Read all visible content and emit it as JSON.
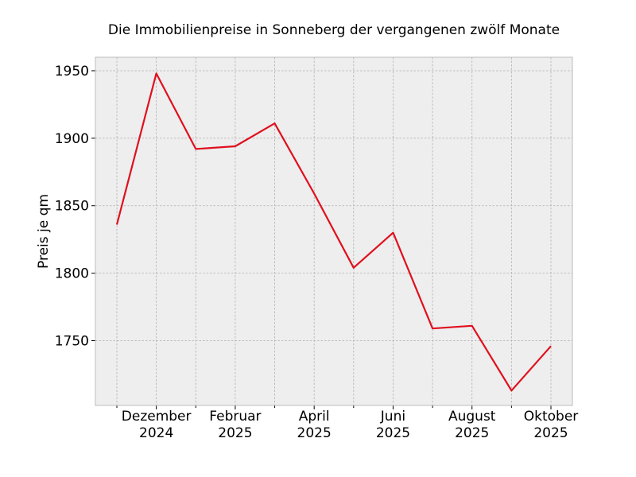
{
  "chart_data": {
    "type": "line",
    "title": "Die Immobilienpreise in Sonneberg der vergangenen zwölf Monate",
    "xlabel": "",
    "ylabel": "Preis je qm",
    "x": [
      "2024-11",
      "2024-12",
      "2025-01",
      "2025-02",
      "2025-03",
      "2025-04",
      "2025-05",
      "2025-06",
      "2025-07",
      "2025-08",
      "2025-09",
      "2025-10"
    ],
    "series": [
      {
        "values": [
          1836,
          1948,
          1892,
          1894,
          1911,
          1859,
          1804,
          1830,
          1759,
          1761,
          1713,
          1746
        ],
        "color": "#e0101e"
      }
    ],
    "x_ticks": [
      {
        "x": "2024-12",
        "line1": "Dezember",
        "line2": "2024"
      },
      {
        "x": "2025-02",
        "line1": "Februar",
        "line2": "2025"
      },
      {
        "x": "2025-04",
        "line1": "April",
        "line2": "2025"
      },
      {
        "x": "2025-06",
        "line1": "Juni",
        "line2": "2025"
      },
      {
        "x": "2025-08",
        "line1": "August",
        "line2": "2025"
      },
      {
        "x": "2025-10",
        "line1": "Oktober",
        "line2": "2025"
      }
    ],
    "x_minor_ticks": [
      "2024-11",
      "2025-01",
      "2025-03",
      "2025-05",
      "2025-07",
      "2025-09"
    ],
    "y_ticks": [
      1750,
      1800,
      1850,
      1900,
      1950
    ],
    "ylim": [
      1702,
      1960
    ],
    "grid": true,
    "legend": "none",
    "colors": {
      "background": "#eeeeee",
      "grid": "#b0b0b0",
      "frame": "#bcbcbc"
    }
  }
}
